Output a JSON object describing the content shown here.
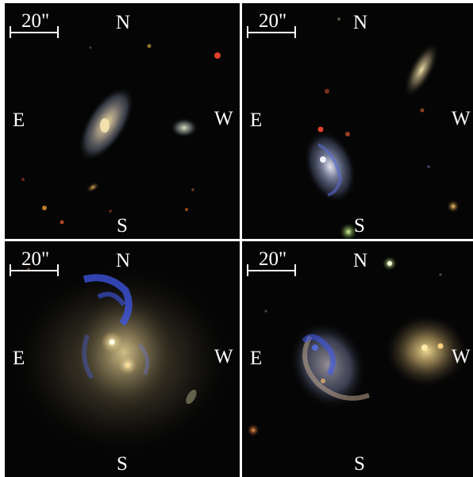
{
  "panels": [
    {
      "id": "top-left",
      "north": "N",
      "south": "S",
      "east": "E",
      "west": "W",
      "scale": "20\""
    },
    {
      "id": "top-right",
      "north": "N",
      "south": "S",
      "east": "E",
      "west": "W",
      "scale": "20\""
    },
    {
      "id": "bottom-left",
      "north": "N",
      "south": "S",
      "east": "E",
      "west": "W",
      "scale": "20\""
    },
    {
      "id": "bottom-right",
      "north": "N",
      "south": "S",
      "east": "E",
      "west": "W",
      "scale": "20\""
    }
  ],
  "colors": {
    "sky": "#050505",
    "label": "#ffffff",
    "galaxy_core": "#f3e1a8",
    "galaxy_disk": "#8a93a8",
    "star_forming": "#3e57e8",
    "red_star": "#e0402a",
    "orange_star": "#e49a3a",
    "green_star": "#9be86a"
  }
}
